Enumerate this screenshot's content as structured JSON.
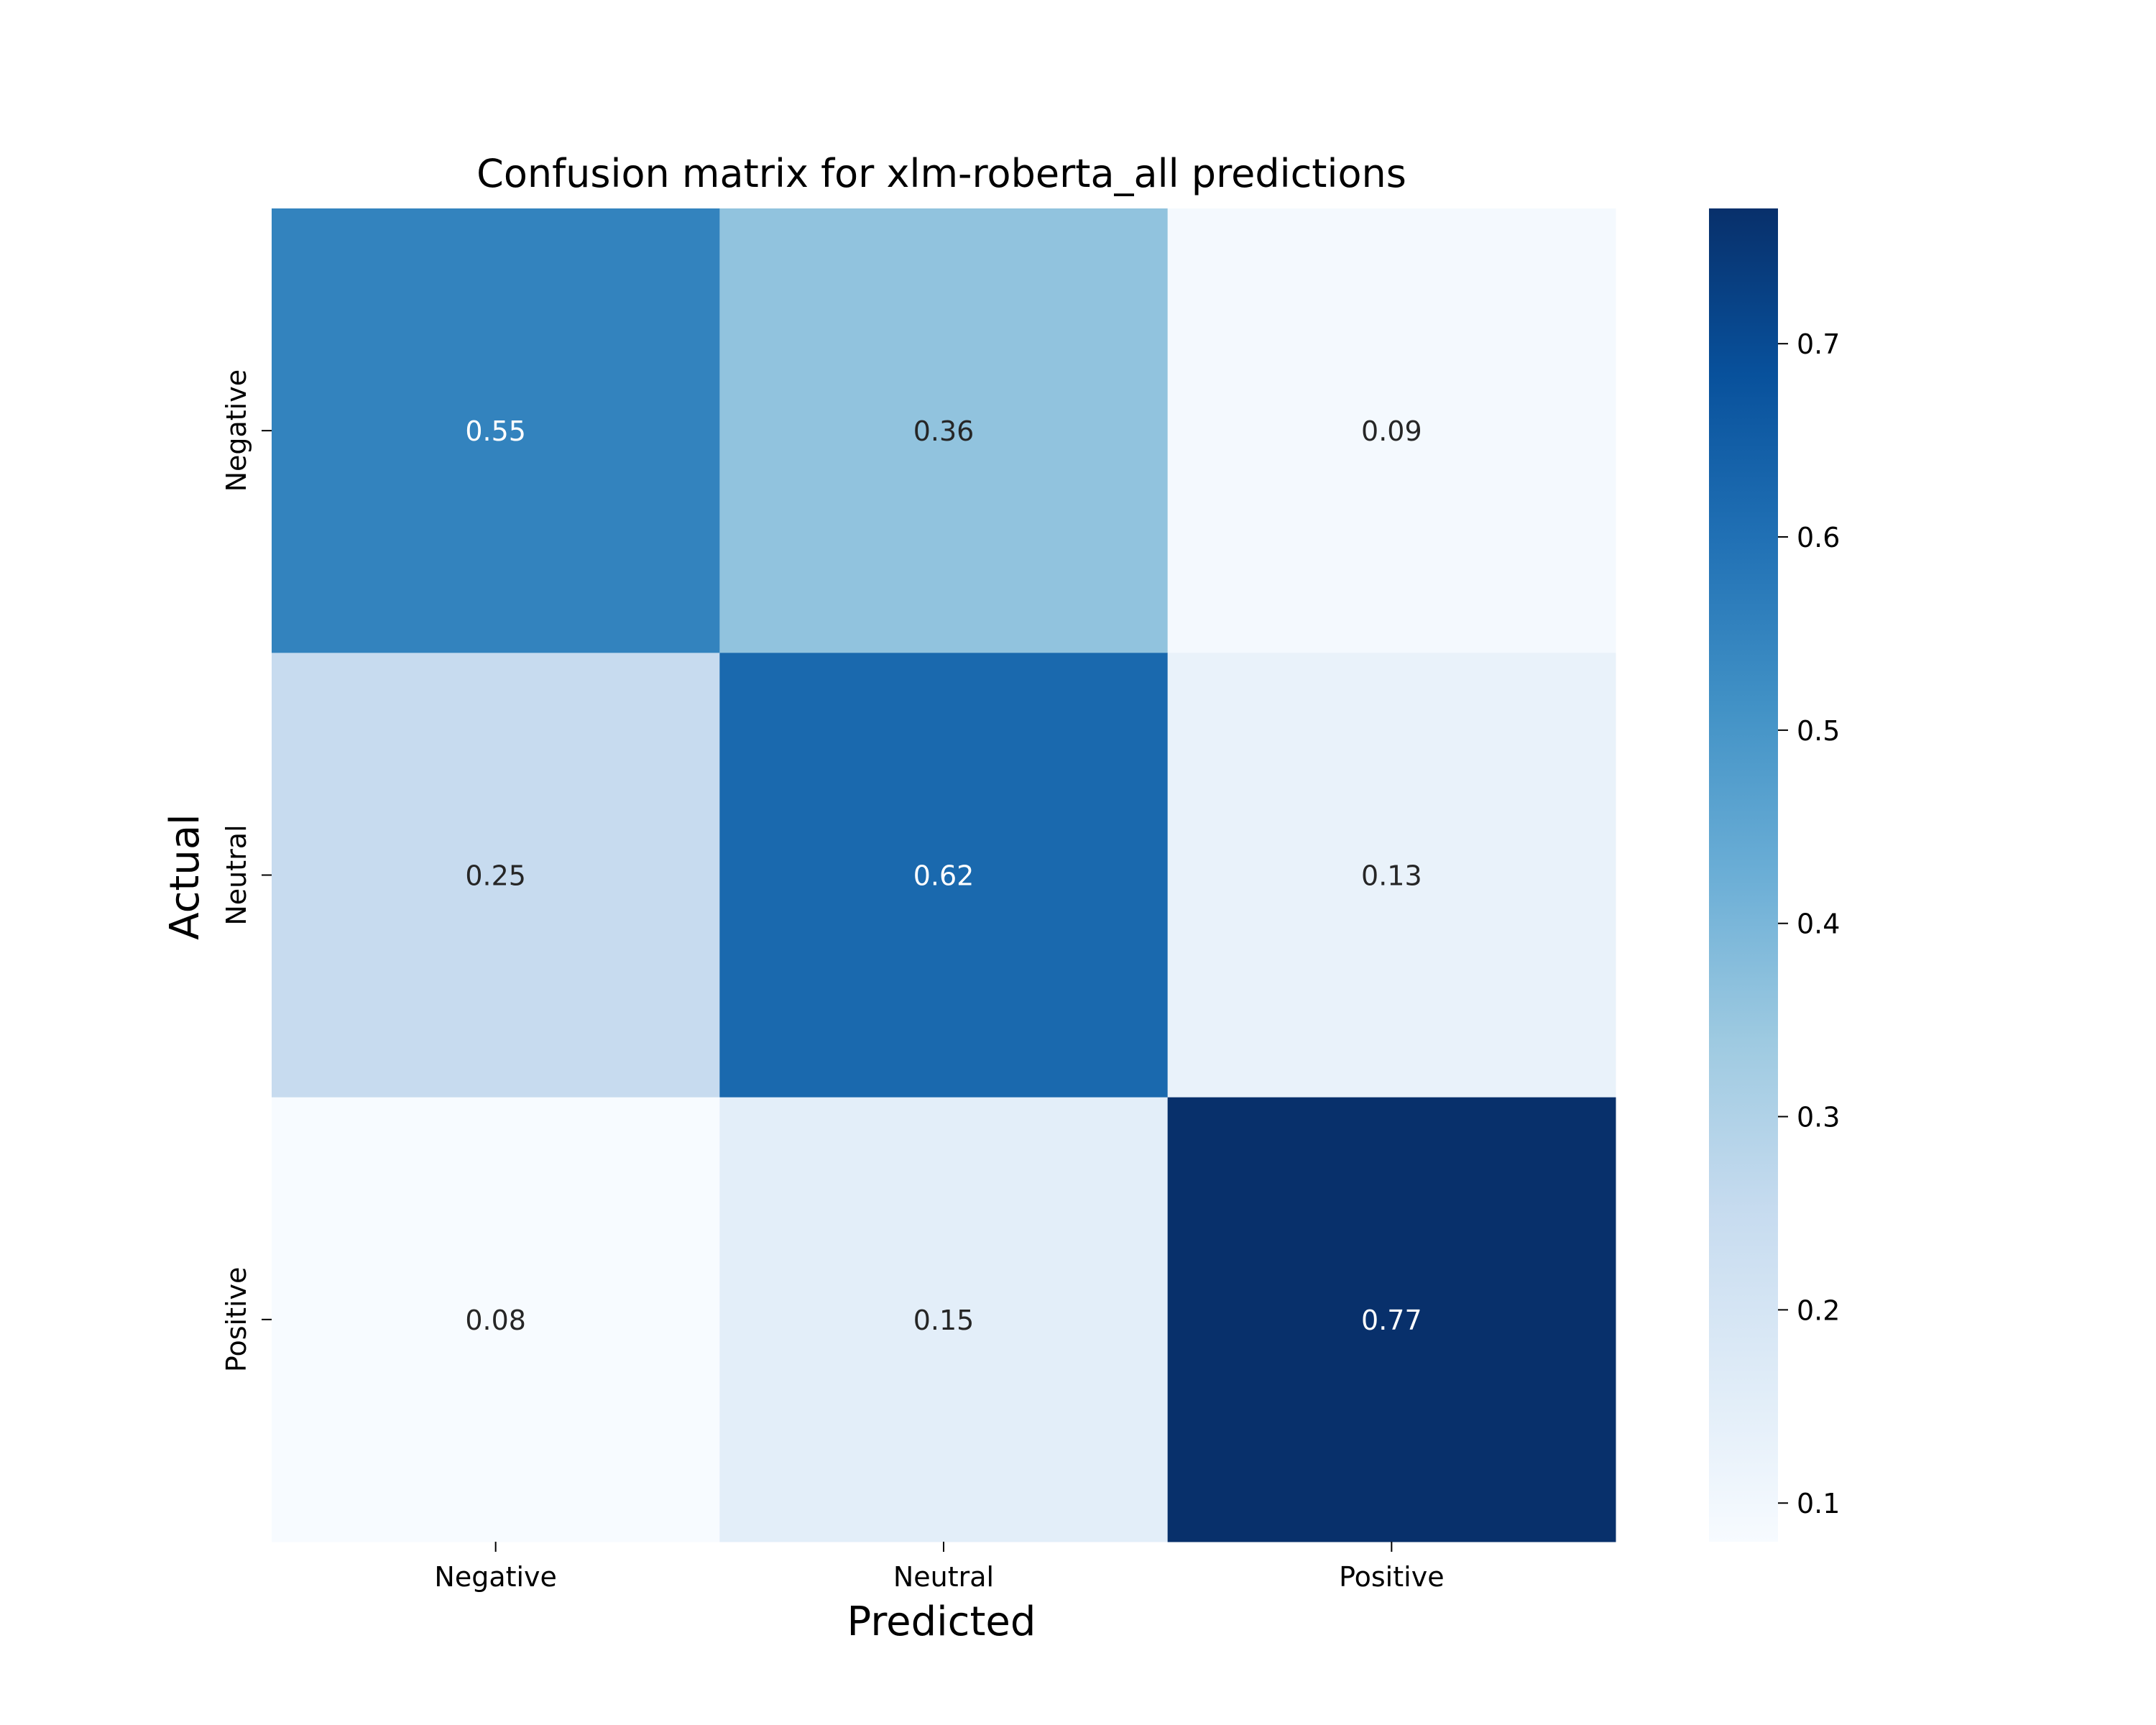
{
  "chart_data": {
    "type": "heatmap",
    "title": "Confusion matrix for xlm-roberta_all predictions",
    "xlabel": "Predicted",
    "ylabel": "Actual",
    "x_categories": [
      "Negative",
      "Neutral",
      "Positive"
    ],
    "y_categories": [
      "Negative",
      "Neutral",
      "Positive"
    ],
    "values": [
      [
        0.55,
        0.36,
        0.09
      ],
      [
        0.25,
        0.62,
        0.13
      ],
      [
        0.08,
        0.15,
        0.77
      ]
    ],
    "value_labels": [
      [
        "0.55",
        "0.36",
        "0.09"
      ],
      [
        "0.25",
        "0.62",
        "0.13"
      ],
      [
        "0.08",
        "0.15",
        "0.77"
      ]
    ],
    "colormap": "Blues",
    "colorbar": {
      "range": [
        0.08,
        0.77
      ],
      "ticks": [
        0.1,
        0.2,
        0.3,
        0.4,
        0.5,
        0.6,
        0.7
      ],
      "tick_labels": [
        "0.1",
        "0.2",
        "0.3",
        "0.4",
        "0.5",
        "0.6",
        "0.7"
      ]
    },
    "grid": false,
    "legend": "none"
  }
}
